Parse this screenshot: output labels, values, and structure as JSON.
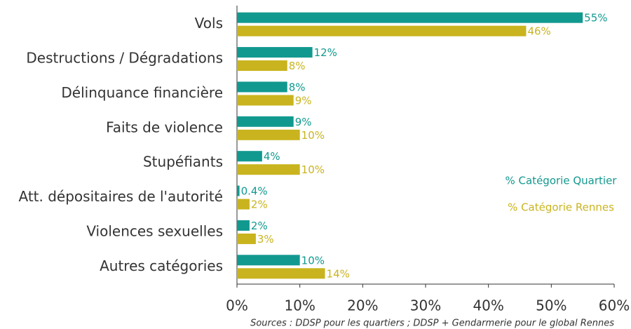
{
  "chart_data": {
    "type": "hbar",
    "categories": [
      "Vols",
      "Destructions / Dégradations",
      "Délinquance financière",
      "Faits de violence",
      "Stupéfiants",
      "Att. dépositaires de l'autorité",
      "Violences sexuelles",
      "Autres catégories"
    ],
    "series": [
      {
        "name": "% Catégorie Quartier",
        "color": "#12998f",
        "values": [
          55,
          12,
          8,
          9,
          4,
          0.4,
          2,
          10
        ],
        "value_labels": [
          "55%",
          "12%",
          "8%",
          "9%",
          "4%",
          "0.4%",
          "2%",
          "10%"
        ]
      },
      {
        "name": "% Catégorie Rennes",
        "color": "#c9b41f",
        "values": [
          46,
          8,
          9,
          10,
          10,
          2,
          3,
          14
        ],
        "value_labels": [
          "46%",
          "8%",
          "9%",
          "10%",
          "10%",
          "2%",
          "3%",
          "14%"
        ]
      }
    ],
    "xlim": [
      0,
      60
    ],
    "xticks": [
      {
        "value": 0,
        "label": "0%"
      },
      {
        "value": 10,
        "label": "10%"
      },
      {
        "value": 20,
        "label": "20%"
      },
      {
        "value": 30,
        "label": "30%"
      },
      {
        "value": 40,
        "label": "40%"
      },
      {
        "value": 50,
        "label": "50%"
      },
      {
        "value": 60,
        "label": "60%"
      }
    ],
    "legend": "right",
    "source": "Sources : DDSP pour les quartiers ; DDSP + Gendarmerie pour le global Rennes"
  }
}
